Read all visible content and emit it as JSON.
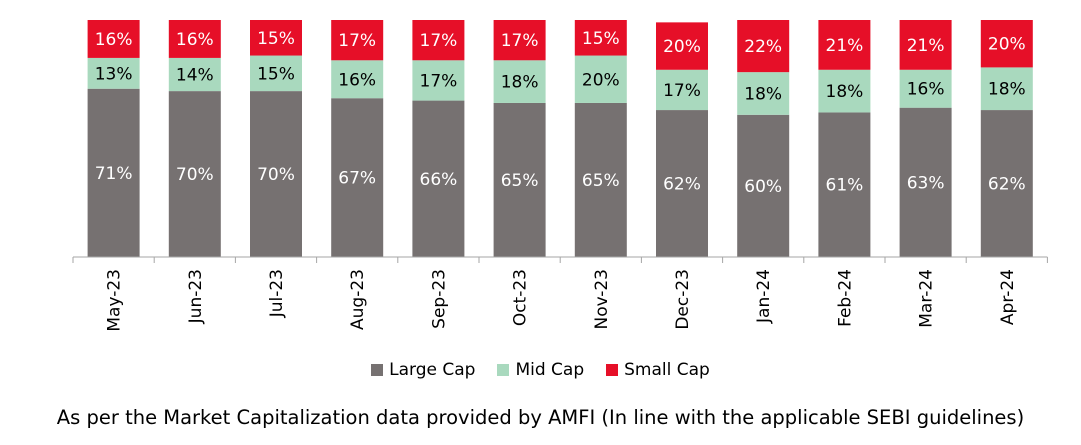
{
  "chart_data": {
    "type": "bar",
    "stacked": true,
    "categories": [
      "May-23",
      "Jun-23",
      "Jul-23",
      "Aug-23",
      "Sep-23",
      "Oct-23",
      "Nov-23",
      "Dec-23",
      "Jan-24",
      "Feb-24",
      "Mar-24",
      "Apr-24"
    ],
    "series": [
      {
        "name": "Large Cap",
        "color": "#767171",
        "label_color": "#ffffff",
        "values": [
          71,
          70,
          70,
          67,
          66,
          65,
          65,
          62,
          60,
          61,
          63,
          62
        ],
        "labels": [
          "71%",
          "70%",
          "70%",
          "67%",
          "66%",
          "65%",
          "65%",
          "62%",
          "60%",
          "61%",
          "63%",
          "62%"
        ]
      },
      {
        "name": "Mid Cap",
        "color": "#A9D9BE",
        "label_color": "#000000",
        "values": [
          13,
          14,
          15,
          16,
          17,
          18,
          20,
          17,
          18,
          18,
          16,
          18
        ],
        "labels": [
          "13%",
          "14%",
          "15%",
          "16%",
          "17%",
          "18%",
          "20%",
          "17%",
          "18%",
          "18%",
          "16%",
          "18%"
        ]
      },
      {
        "name": "Small Cap",
        "color": "#E60F28",
        "label_color": "#ffffff",
        "values": [
          16,
          16,
          15,
          17,
          17,
          17,
          15,
          20,
          22,
          21,
          21,
          20
        ],
        "labels": [
          "16%",
          "16%",
          "15%",
          "17%",
          "17%",
          "17%",
          "15%",
          "20%",
          "22%",
          "21%",
          "21%",
          "20%"
        ]
      }
    ],
    "legend_position": "bottom",
    "grid": false,
    "title": "",
    "xlabel": "",
    "ylabel": ""
  },
  "footnote": "As per the Market Capitalization data provided by AMFI (In line with the applicable SEBI guidelines)"
}
